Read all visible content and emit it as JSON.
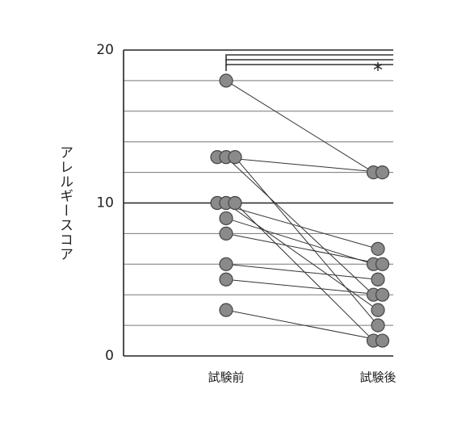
{
  "chart_data": {
    "type": "paired_dot",
    "y_label": "アレルギースコア",
    "categories": [
      "試験前",
      "試験後"
    ],
    "values": [
      [
        18,
        12
      ],
      [
        13,
        12
      ],
      [
        13,
        4
      ],
      [
        13,
        2
      ],
      [
        10,
        7
      ],
      [
        10,
        3
      ],
      [
        10,
        1
      ],
      [
        9,
        6
      ],
      [
        8,
        6
      ],
      [
        6,
        5
      ],
      [
        5,
        4
      ],
      [
        3,
        1
      ]
    ],
    "ylim": [
      0,
      20
    ],
    "yticks": [
      0,
      10,
      20
    ],
    "grid_lines": [
      2,
      4,
      6,
      8,
      12,
      14,
      16,
      18
    ],
    "annotation": "*",
    "color": "#8a8a8a"
  }
}
